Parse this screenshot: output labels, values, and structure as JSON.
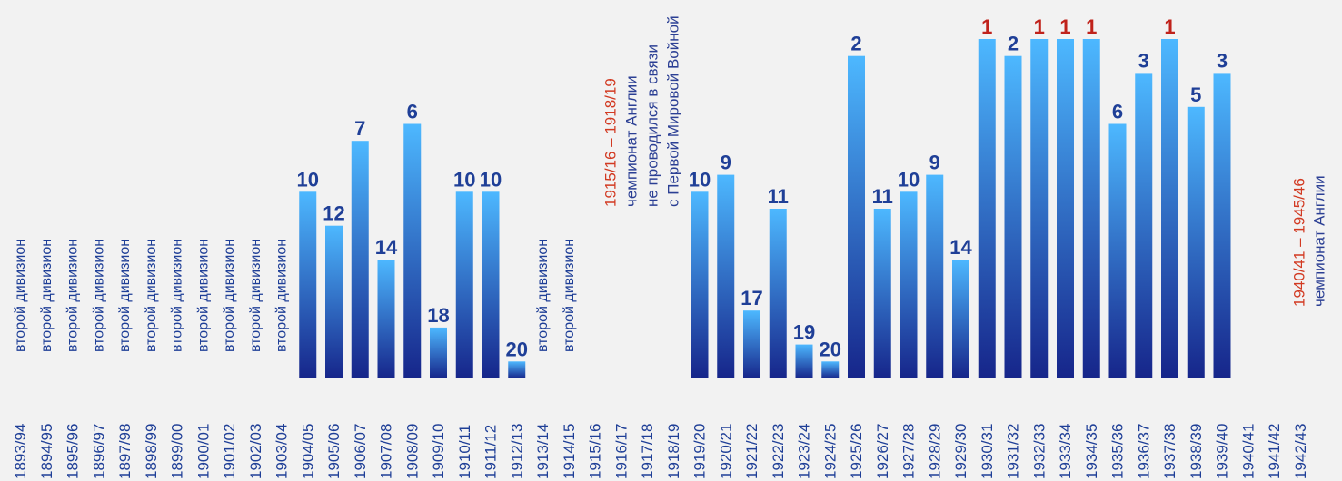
{
  "chart_data": {
    "type": "bar",
    "title": "",
    "xlabel": "",
    "ylabel": "",
    "value_meaning": "league position (1 = champion)",
    "y_inverted": true,
    "ylim": [
      21,
      1
    ],
    "categories": [
      "1893/94",
      "1894/95",
      "1895/96",
      "1896/97",
      "1897/98",
      "1898/99",
      "1899/00",
      "1900/01",
      "1901/02",
      "1902/03",
      "1903/04",
      "1904/05",
      "1905/06",
      "1906/07",
      "1907/08",
      "1908/09",
      "1909/10",
      "1910/11",
      "1911/12",
      "1912/13",
      "1913/14",
      "1914/15",
      "1915/16",
      "1916/17",
      "1917/18",
      "1918/19",
      "1919/20",
      "1920/21",
      "1921/22",
      "1922/23",
      "1923/24",
      "1924/25",
      "1925/26",
      "1926/27",
      "1927/28",
      "1928/29",
      "1929/30",
      "1930/31",
      "1931/32",
      "1932/33",
      "1933/34",
      "1934/35",
      "1935/36",
      "1936/37",
      "1937/38",
      "1938/39",
      "1939/40",
      "1940/41",
      "1941/42",
      "1942/43"
    ],
    "values": [
      null,
      null,
      null,
      null,
      null,
      null,
      null,
      null,
      null,
      null,
      null,
      10,
      12,
      7,
      14,
      6,
      18,
      10,
      10,
      20,
      null,
      null,
      null,
      null,
      null,
      null,
      10,
      9,
      17,
      11,
      19,
      20,
      2,
      11,
      10,
      9,
      14,
      1,
      2,
      1,
      1,
      1,
      6,
      3,
      1,
      5,
      3,
      null,
      null,
      null
    ],
    "second_division_label": "второй дивизион",
    "second_division_seasons": [
      "1893/94",
      "1894/95",
      "1895/96",
      "1896/97",
      "1897/98",
      "1898/99",
      "1899/00",
      "1900/01",
      "1901/02",
      "1902/03",
      "1903/04",
      "1913/14",
      "1914/15"
    ],
    "annotations": [
      {
        "lines": [
          "1915/16 – 1918/19",
          "чемпионат Англии",
          "не проводился в связи",
          "с Первой Мировой Войной"
        ]
      },
      {
        "lines": [
          "1940/41 – 1945/46",
          "чемпионат Англии"
        ]
      }
    ],
    "colors": {
      "bar_top": "#4db8ff",
      "bar_bottom": "#16258a",
      "label": "#1f3f97",
      "champion_label": "#c0221b",
      "note_highlight": "#d23a22",
      "note_text": "#2b3f94",
      "background": "#f2f2f2"
    }
  }
}
